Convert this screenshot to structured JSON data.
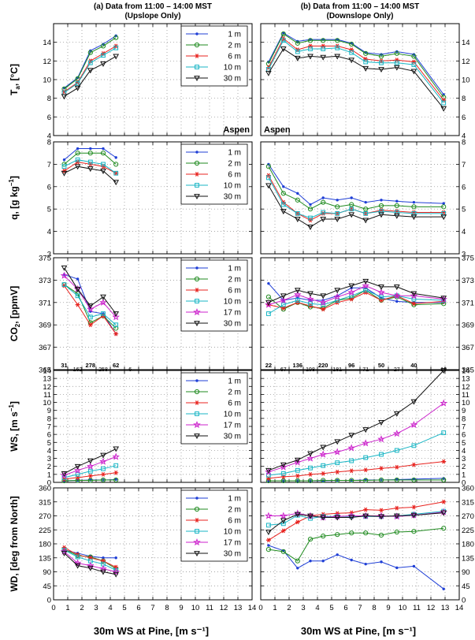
{
  "colors": {
    "1 m": "#1f3fd6",
    "2 m": "#1f8a1f",
    "6 m": "#e8231f",
    "10 m": "#18b5c4",
    "17 m": "#cc22cc",
    "30 m": "#111111"
  },
  "chart_data": {
    "type": "line",
    "column_titles": [
      {
        "line1": "(a) Data from 11:00 – 14:00 MST",
        "line2": "(Upslope Only)"
      },
      {
        "line1": "(b) Data from 11:00 – 14:00 MST",
        "line2": "(Downslope Only)"
      }
    ],
    "xlabel": "30m WS at Pine, [m s⁻¹]",
    "xlim": [
      0,
      14
    ],
    "xticks": [
      0,
      1,
      2,
      3,
      4,
      5,
      6,
      7,
      8,
      9,
      10,
      11,
      12,
      13,
      14
    ],
    "x_left": [
      0.75,
      1.7,
      2.6,
      3.5,
      4.4
    ],
    "x_right": [
      0.55,
      1.6,
      2.6,
      3.5,
      4.4,
      5.4,
      6.4,
      7.4,
      8.5,
      9.6,
      10.8,
      12.9
    ],
    "aspen_label": "Aspen",
    "panels": [
      {
        "id": "ta",
        "ylabel": "T",
        "ylabel_sub": "a",
        "ylabel_rest": ", [°C]",
        "ylim": [
          4,
          16
        ],
        "yticks": [
          4,
          6,
          8,
          10,
          12,
          14
        ],
        "legend": [
          "1 m",
          "2 m",
          "6 m",
          "10 m",
          "30 m"
        ],
        "left": {
          "1 m": [
            9.1,
            10.2,
            13.1,
            13.8,
            14.7
          ],
          "2 m": [
            9.0,
            10.1,
            12.9,
            13.6,
            14.5
          ],
          "6 m": [
            8.7,
            9.7,
            12.0,
            12.8,
            13.6
          ],
          "10 m": [
            8.6,
            9.6,
            11.8,
            12.6,
            13.4
          ],
          "30 m": [
            8.2,
            9.1,
            11.0,
            11.7,
            12.5
          ]
        },
        "right": {
          "1 m": [
            11.9,
            15.0,
            14.1,
            14.3,
            14.3,
            14.3,
            13.9,
            12.9,
            12.7,
            13.0,
            12.7,
            8.4
          ],
          "2 m": [
            11.7,
            14.9,
            13.9,
            14.2,
            14.2,
            14.2,
            13.8,
            12.8,
            12.5,
            12.8,
            12.5,
            8.1
          ],
          "6 m": [
            11.3,
            14.4,
            13.2,
            13.6,
            13.6,
            13.6,
            13.2,
            12.2,
            12.0,
            12.1,
            11.9,
            7.8
          ],
          "10 m": [
            11.1,
            14.2,
            13.0,
            13.3,
            13.3,
            13.4,
            12.9,
            11.9,
            11.8,
            11.8,
            11.6,
            7.5
          ],
          "30 m": [
            10.7,
            13.3,
            12.3,
            12.5,
            12.4,
            12.5,
            12.1,
            11.2,
            11.1,
            11.3,
            10.9,
            6.9
          ]
        }
      },
      {
        "id": "q",
        "ylabel": "q, [g kg",
        "ylabel_sup": "−1",
        "ylabel_rest": "]",
        "ylim": [
          3,
          8
        ],
        "yticks": [
          3,
          4,
          5,
          6,
          7,
          8
        ],
        "legend": [
          "1 m",
          "2 m",
          "6 m",
          "10 m",
          "30 m"
        ],
        "left": {
          "1 m": [
            7.2,
            7.7,
            7.7,
            7.7,
            7.3
          ],
          "2 m": [
            7.0,
            7.5,
            7.5,
            7.5,
            7.0
          ],
          "6 m": [
            6.7,
            7.1,
            7.0,
            6.9,
            6.6
          ],
          "10 m": [
            6.9,
            7.2,
            7.1,
            7.0,
            6.6
          ],
          "30 m": [
            6.6,
            6.9,
            6.8,
            6.7,
            6.2
          ]
        },
        "right": {
          "1 m": [
            7.0,
            6.0,
            5.7,
            5.2,
            5.5,
            5.4,
            5.5,
            5.3,
            5.4,
            5.35,
            5.3,
            5.25
          ],
          "2 m": [
            6.9,
            5.7,
            5.4,
            5.0,
            5.3,
            5.1,
            5.2,
            5.0,
            5.15,
            5.15,
            5.1,
            5.1
          ],
          "6 m": [
            6.5,
            5.3,
            4.8,
            4.5,
            4.8,
            4.8,
            5.0,
            4.8,
            4.95,
            4.9,
            4.85,
            4.85
          ],
          "10 m": [
            6.4,
            5.2,
            4.8,
            4.6,
            4.85,
            4.8,
            5.0,
            4.8,
            4.9,
            4.85,
            4.8,
            4.8
          ],
          "30 m": [
            6.05,
            4.9,
            4.55,
            4.2,
            4.55,
            4.55,
            4.75,
            4.5,
            4.75,
            4.7,
            4.65,
            4.65
          ]
        }
      },
      {
        "id": "co2",
        "ylabel": "CO",
        "ylabel_sub": "2",
        "ylabel_rest": ", [ppmV]",
        "ylim": [
          365,
          375
        ],
        "yticks": [
          365,
          367,
          369,
          371,
          373,
          375
        ],
        "legend": [
          "1 m",
          "2 m",
          "6 m",
          "10 m",
          "17 m",
          "30 m"
        ],
        "counts_left": [
          {
            "x": 0.75,
            "v": "31",
            "b": true
          },
          {
            "x": 1.7,
            "v": "162",
            "b": false
          },
          {
            "x": 2.6,
            "v": "278",
            "b": true
          },
          {
            "x": 3.5,
            "v": "258",
            "b": false
          },
          {
            "x": 4.4,
            "v": "62",
            "b": true
          },
          {
            "x": 5.4,
            "v": "6",
            "b": false
          }
        ],
        "counts_right": [
          {
            "x": 0.55,
            "v": "22",
            "b": true
          },
          {
            "x": 1.6,
            "v": "67",
            "b": false
          },
          {
            "x": 2.6,
            "v": "136",
            "b": true
          },
          {
            "x": 3.5,
            "v": "198",
            "b": false
          },
          {
            "x": 4.4,
            "v": "220",
            "b": true
          },
          {
            "x": 5.4,
            "v": "181",
            "b": false
          },
          {
            "x": 6.4,
            "v": "96",
            "b": true
          },
          {
            "x": 7.4,
            "v": "71",
            "b": false
          },
          {
            "x": 8.5,
            "v": "50",
            "b": true
          },
          {
            "x": 9.6,
            "v": "27",
            "b": false
          },
          {
            "x": 10.8,
            "v": "40",
            "b": true
          },
          {
            "x": 12.9,
            "v": "16",
            "b": false
          }
        ],
        "left": {
          "1 m": [
            373.5,
            373.1,
            370.2,
            370.0,
            368.2
          ],
          "2 m": [
            372.6,
            371.8,
            369.2,
            369.8,
            368.7
          ],
          "6 m": [
            372.5,
            370.8,
            369.0,
            369.8,
            368.2
          ],
          "10 m": [
            372.6,
            371.6,
            369.7,
            370.0,
            369.0
          ],
          "17 m": [
            373.4,
            372.2,
            370.4,
            371.0,
            369.7
          ],
          "30 m": [
            374.1,
            372.2,
            370.7,
            371.5,
            370.0
          ]
        },
        "right": {
          "1 m": [
            372.7,
            371.2,
            371.4,
            371.2,
            371.2,
            371.6,
            372.3,
            372.3,
            371.4,
            371.1,
            371.0,
            371.0
          ],
          "2 m": [
            371.5,
            370.4,
            371.0,
            370.6,
            370.5,
            371.2,
            371.4,
            372.1,
            371.2,
            371.5,
            370.8,
            370.9
          ],
          "6 m": [
            370.8,
            370.5,
            371.0,
            370.7,
            370.4,
            371.0,
            371.3,
            371.9,
            371.2,
            371.6,
            370.9,
            371.1
          ],
          "10 m": [
            370.0,
            370.8,
            371.2,
            370.9,
            370.8,
            371.2,
            371.6,
            372.1,
            371.5,
            371.6,
            371.3,
            371.2
          ],
          "17 m": [
            370.8,
            371.2,
            371.7,
            371.3,
            371.0,
            371.5,
            371.9,
            372.5,
            371.9,
            371.6,
            371.6,
            371.3
          ],
          "30 m": [
            371.0,
            371.6,
            372.1,
            371.8,
            371.6,
            372.1,
            372.5,
            372.9,
            372.4,
            372.4,
            371.8,
            371.4
          ]
        }
      },
      {
        "id": "ws",
        "ylabel": "WS, [m s",
        "ylabel_sup": "−1",
        "ylabel_rest": "]",
        "ylim": [
          0,
          14
        ],
        "yticks": [
          0,
          1,
          2,
          3,
          4,
          5,
          6,
          7,
          8,
          9,
          10,
          11,
          12,
          13,
          14
        ],
        "legend": [
          "1 m",
          "2 m",
          "6 m",
          "10 m",
          "17 m",
          "30 m"
        ],
        "left": {
          "1 m": [
            0.2,
            0.25,
            0.3,
            0.3,
            0.35
          ],
          "2 m": [
            0.2,
            0.25,
            0.25,
            0.3,
            0.3
          ],
          "6 m": [
            0.4,
            0.6,
            0.8,
            1.0,
            1.2
          ],
          "10 m": [
            0.6,
            1.0,
            1.4,
            1.7,
            2.1
          ],
          "17 m": [
            0.9,
            1.5,
            2.0,
            2.6,
            3.2
          ],
          "30 m": [
            1.1,
            2.0,
            2.7,
            3.4,
            4.2
          ]
        },
        "right": {
          "1 m": [
            0.2,
            0.2,
            0.2,
            0.2,
            0.2,
            0.25,
            0.25,
            0.3,
            0.3,
            0.35,
            0.4,
            0.5
          ],
          "2 m": [
            0.2,
            0.2,
            0.2,
            0.2,
            0.25,
            0.25,
            0.25,
            0.25,
            0.3,
            0.3,
            0.3,
            0.3
          ],
          "6 m": [
            0.5,
            0.7,
            0.8,
            1.0,
            1.1,
            1.3,
            1.45,
            1.55,
            1.75,
            1.9,
            2.2,
            2.6
          ],
          "10 m": [
            0.9,
            1.1,
            1.5,
            1.8,
            2.1,
            2.45,
            2.7,
            3.1,
            3.5,
            4.0,
            4.6,
            6.2
          ],
          "17 m": [
            1.3,
            1.9,
            2.5,
            3.0,
            3.5,
            3.8,
            4.3,
            4.9,
            5.4,
            6.1,
            7.2,
            9.9
          ],
          "30 m": [
            1.5,
            2.2,
            2.8,
            3.6,
            4.4,
            5.1,
            5.9,
            6.6,
            7.5,
            8.6,
            10.1,
            14.0
          ]
        }
      },
      {
        "id": "wd",
        "ylabel": "WD, [deg from North]",
        "ylim": [
          0,
          360
        ],
        "yticks": [
          0,
          45,
          90,
          135,
          180,
          225,
          270,
          315,
          360
        ],
        "legend": [
          "1 m",
          "2 m",
          "6 m",
          "10 m",
          "17 m",
          "30 m"
        ],
        "left": {
          "1 m": [
            160,
            150,
            140,
            135,
            135
          ],
          "2 m": [
            163,
            142,
            138,
            125,
            100
          ],
          "6 m": [
            168,
            145,
            135,
            125,
            105
          ],
          "10 m": [
            160,
            138,
            125,
            115,
            95
          ],
          "17 m": [
            155,
            118,
            110,
            100,
            90
          ],
          "30 m": [
            150,
            110,
            102,
            90,
            82
          ]
        },
        "right": {
          "1 m": [
            175,
            158,
            102,
            125,
            125,
            145,
            128,
            115,
            122,
            103,
            108,
            35
          ],
          "2 m": [
            162,
            155,
            125,
            195,
            205,
            210,
            215,
            215,
            208,
            218,
            220,
            230
          ],
          "6 m": [
            192,
            222,
            250,
            270,
            275,
            278,
            280,
            290,
            288,
            295,
            298,
            315
          ],
          "10 m": [
            240,
            245,
            272,
            262,
            268,
            268,
            268,
            268,
            268,
            270,
            275,
            285
          ],
          "17 m": [
            270,
            270,
            278,
            270,
            265,
            268,
            270,
            270,
            270,
            268,
            272,
            282
          ],
          "30 m": [
            218,
            255,
            275,
            270,
            265,
            265,
            265,
            270,
            268,
            270,
            272,
            280
          ]
        }
      }
    ]
  }
}
